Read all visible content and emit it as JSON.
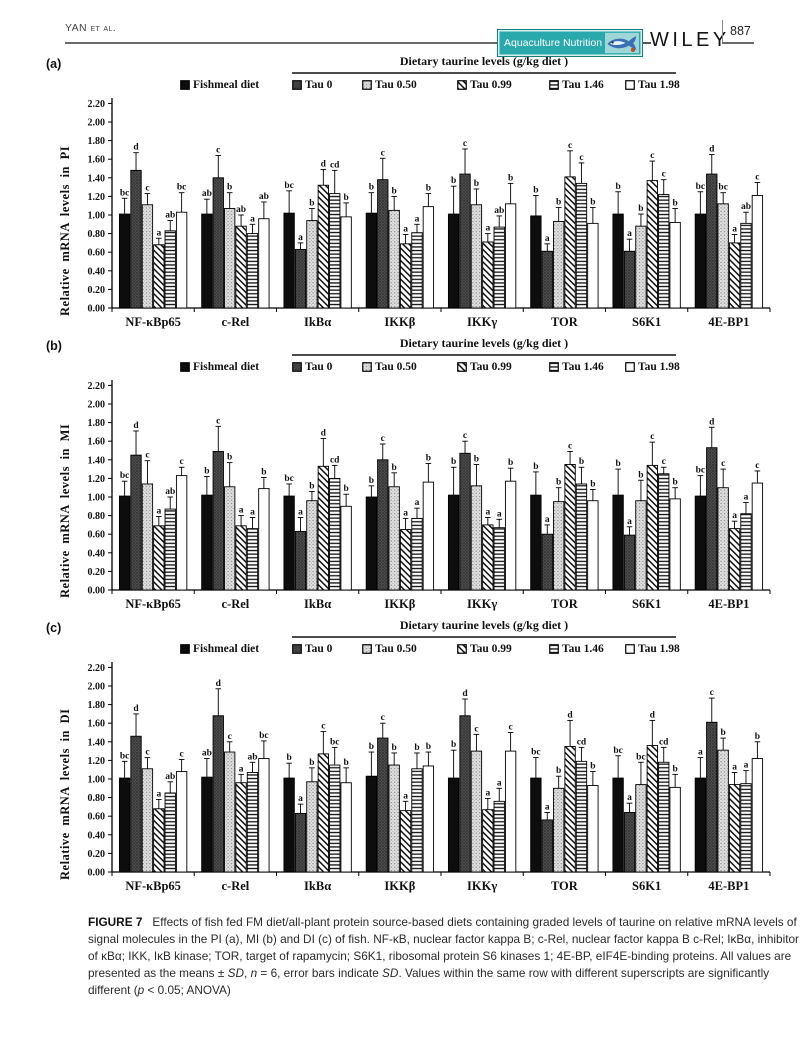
{
  "header": {
    "running_head": "YAN et al.",
    "journal": "Aquaculture Nutrition",
    "publisher": "WILEY",
    "page_number": "887"
  },
  "chart_data": [
    {
      "type": "bar",
      "panel": "(a)",
      "title": "Dietary taurine levels (g/kg diet )",
      "ylabel": "Relative mRNA levels in PI",
      "ylim": [
        0,
        2.2
      ],
      "ytick_step": 0.2,
      "grid": false,
      "legend_position": "top",
      "categories": [
        "NF-κBp65",
        "c-Rel",
        "IkBα",
        "IKKβ",
        "IKKγ",
        "TOR",
        "S6K1",
        "4E-BP1"
      ],
      "series": [
        {
          "name": "Fishmeal diet",
          "pattern": "solid",
          "values": [
            1.01,
            1.01,
            1.02,
            1.02,
            1.01,
            0.99,
            1.01,
            1.01
          ],
          "errors": [
            0.17,
            0.16,
            0.24,
            0.22,
            0.3,
            0.22,
            0.24,
            0.24
          ],
          "letters": [
            "bc",
            "ab",
            "bc",
            "b",
            "b",
            "b",
            "b",
            "bc"
          ]
        },
        {
          "name": "Tau 0",
          "pattern": "dark",
          "values": [
            1.48,
            1.4,
            0.63,
            1.38,
            1.44,
            0.61,
            0.61,
            1.44
          ],
          "errors": [
            0.19,
            0.24,
            0.07,
            0.23,
            0.27,
            0.08,
            0.13,
            0.21
          ],
          "letters": [
            "d",
            "c",
            "a",
            "c",
            "c",
            "a",
            "a",
            "d"
          ]
        },
        {
          "name": "Tau 0.50",
          "pattern": "dots",
          "values": [
            1.11,
            1.07,
            0.94,
            1.05,
            1.11,
            0.93,
            0.88,
            1.12
          ],
          "errors": [
            0.12,
            0.17,
            0.13,
            0.15,
            0.17,
            0.15,
            0.13,
            0.12
          ],
          "letters": [
            "c",
            "b",
            "b",
            "b",
            "b",
            "b",
            "b",
            "bc"
          ]
        },
        {
          "name": "Tau 0.99",
          "pattern": "diag",
          "values": [
            0.68,
            0.88,
            1.32,
            0.69,
            0.71,
            1.41,
            1.37,
            0.7
          ],
          "errors": [
            0.07,
            0.12,
            0.17,
            0.1,
            0.09,
            0.28,
            0.21,
            0.09
          ],
          "letters": [
            "a",
            "ab",
            "d",
            "a",
            "a",
            "c",
            "c",
            "a"
          ]
        },
        {
          "name": "Tau 1.46",
          "pattern": "hlines",
          "values": [
            0.83,
            0.8,
            1.23,
            0.81,
            0.87,
            1.34,
            1.22,
            0.91
          ],
          "errors": [
            0.11,
            0.1,
            0.25,
            0.09,
            0.12,
            0.22,
            0.16,
            0.12
          ],
          "letters": [
            "ab",
            "a",
            "cd",
            "a",
            "ab",
            "c",
            "c",
            "ab"
          ]
        },
        {
          "name": "Tau 1.98",
          "pattern": "white",
          "values": [
            1.03,
            0.96,
            0.98,
            1.09,
            1.12,
            0.91,
            0.92,
            1.21
          ],
          "errors": [
            0.21,
            0.18,
            0.15,
            0.14,
            0.22,
            0.17,
            0.15,
            0.14
          ],
          "letters": [
            "bc",
            "ab",
            "b",
            "b",
            "b",
            "b",
            "b",
            "c"
          ]
        }
      ]
    },
    {
      "type": "bar",
      "panel": "(b)",
      "title": "Dietary taurine levels (g/kg diet )",
      "ylabel": "Relative mRNA levels in MI",
      "ylim": [
        0,
        2.2
      ],
      "ytick_step": 0.2,
      "grid": false,
      "legend_position": "top",
      "categories": [
        "NF-κBp65",
        "c-Rel",
        "IkBα",
        "IKKβ",
        "IKKγ",
        "TOR",
        "S6K1",
        "4E-BP1"
      ],
      "series": [
        {
          "name": "Fishmeal diet",
          "pattern": "solid",
          "values": [
            1.01,
            1.02,
            1.01,
            1.0,
            1.02,
            1.02,
            1.02,
            1.01
          ],
          "errors": [
            0.16,
            0.2,
            0.13,
            0.12,
            0.3,
            0.25,
            0.28,
            0.22
          ],
          "letters": [
            "bc",
            "b",
            "bc",
            "b",
            "b",
            "b",
            "b",
            "bc"
          ]
        },
        {
          "name": "Tau 0",
          "pattern": "dark",
          "values": [
            1.45,
            1.49,
            0.63,
            1.4,
            1.47,
            0.6,
            0.59,
            1.53
          ],
          "errors": [
            0.26,
            0.27,
            0.15,
            0.17,
            0.13,
            0.1,
            0.09,
            0.22
          ],
          "letters": [
            "d",
            "c",
            "a",
            "c",
            "c",
            "a",
            "a",
            "d"
          ]
        },
        {
          "name": "Tau 0.50",
          "pattern": "dots",
          "values": [
            1.14,
            1.11,
            0.96,
            1.11,
            1.12,
            0.95,
            0.96,
            1.1
          ],
          "errors": [
            0.25,
            0.26,
            0.1,
            0.15,
            0.23,
            0.15,
            0.22,
            0.2
          ],
          "letters": [
            "c",
            "b",
            "b",
            "b",
            "b",
            "b",
            "b",
            "c"
          ]
        },
        {
          "name": "Tau 0.99",
          "pattern": "diag",
          "values": [
            0.69,
            0.69,
            1.33,
            0.65,
            0.7,
            1.35,
            1.34,
            0.66
          ],
          "errors": [
            0.1,
            0.11,
            0.3,
            0.12,
            0.08,
            0.14,
            0.25,
            0.08
          ],
          "letters": [
            "a",
            "a",
            "d",
            "a",
            "a",
            "c",
            "c",
            "a"
          ]
        },
        {
          "name": "Tau 1.46",
          "pattern": "hlines",
          "values": [
            0.87,
            0.66,
            1.2,
            0.77,
            0.67,
            1.14,
            1.25,
            0.82
          ],
          "errors": [
            0.13,
            0.12,
            0.14,
            0.11,
            0.09,
            0.18,
            0.07,
            0.12
          ],
          "letters": [
            "ab",
            "a",
            "cd",
            "a",
            "a",
            "b",
            "c",
            "a"
          ]
        },
        {
          "name": "Tau 1.98",
          "pattern": "white",
          "values": [
            1.23,
            1.09,
            0.9,
            1.16,
            1.17,
            0.96,
            0.98,
            1.15
          ],
          "errors": [
            0.09,
            0.12,
            0.13,
            0.2,
            0.14,
            0.12,
            0.12,
            0.13
          ],
          "letters": [
            "c",
            "b",
            "b",
            "b",
            "b",
            "b",
            "b",
            "c"
          ]
        }
      ]
    },
    {
      "type": "bar",
      "panel": "(c)",
      "title": "Dietary taurine levels (g/kg diet )",
      "ylabel": "Relative mRNA levels in DI",
      "ylim": [
        0,
        2.2
      ],
      "ytick_step": 0.2,
      "grid": false,
      "legend_position": "top",
      "categories": [
        "NF-κBp65",
        "c-Rel",
        "IkBα",
        "IKKβ",
        "IKKγ",
        "TOR",
        "S6K1",
        "4E-BP1"
      ],
      "series": [
        {
          "name": "Fishmeal diet",
          "pattern": "solid",
          "values": [
            1.01,
            1.02,
            1.01,
            1.03,
            1.01,
            1.01,
            1.01,
            1.01
          ],
          "errors": [
            0.18,
            0.2,
            0.16,
            0.26,
            0.3,
            0.22,
            0.24,
            0.22
          ],
          "letters": [
            "bc",
            "ab",
            "b",
            "b",
            "b",
            "bc",
            "bc",
            "a"
          ]
        },
        {
          "name": "Tau 0",
          "pattern": "dark",
          "values": [
            1.46,
            1.68,
            0.63,
            1.44,
            1.68,
            0.56,
            0.64,
            1.61
          ],
          "errors": [
            0.24,
            0.29,
            0.1,
            0.16,
            0.18,
            0.08,
            0.1,
            0.26
          ],
          "letters": [
            "d",
            "d",
            "a",
            "c",
            "d",
            "a",
            "a",
            "c"
          ]
        },
        {
          "name": "Tau 0.50",
          "pattern": "dots",
          "values": [
            1.11,
            1.29,
            0.97,
            1.15,
            1.3,
            0.9,
            0.94,
            1.31
          ],
          "errors": [
            0.12,
            0.11,
            0.15,
            0.13,
            0.18,
            0.13,
            0.24,
            0.13
          ],
          "letters": [
            "c",
            "c",
            "b",
            "b",
            "c",
            "b",
            "bc",
            "b"
          ]
        },
        {
          "name": "Tau 0.99",
          "pattern": "diag",
          "values": [
            0.68,
            0.96,
            1.27,
            0.66,
            0.67,
            1.35,
            1.36,
            0.94
          ],
          "errors": [
            0.1,
            0.09,
            0.24,
            0.1,
            0.12,
            0.28,
            0.27,
            0.13
          ],
          "letters": [
            "a",
            "a",
            "c",
            "a",
            "a",
            "d",
            "d",
            "a"
          ]
        },
        {
          "name": "Tau 1.46",
          "pattern": "hlines",
          "values": [
            0.85,
            1.07,
            1.15,
            1.11,
            0.76,
            1.19,
            1.18,
            0.95
          ],
          "errors": [
            0.12,
            0.11,
            0.19,
            0.17,
            0.14,
            0.15,
            0.16,
            0.14
          ],
          "letters": [
            "ab",
            "ab",
            "bc",
            "b",
            "a",
            "cd",
            "cd",
            "a"
          ]
        },
        {
          "name": "Tau 1.98",
          "pattern": "white",
          "values": [
            1.08,
            1.22,
            0.96,
            1.14,
            1.3,
            0.93,
            0.91,
            1.22
          ],
          "errors": [
            0.13,
            0.19,
            0.16,
            0.15,
            0.2,
            0.15,
            0.14,
            0.18
          ],
          "letters": [
            "c",
            "bc",
            "b",
            "b",
            "c",
            "b",
            "b",
            "b"
          ]
        }
      ]
    }
  ],
  "caption": {
    "label": "FIGURE 7",
    "segments": [
      {
        "t": "Effects of fish fed FM diet/all-plant protein source-based diets containing graded levels of taurine on relative mRNA levels of signal molecules in the PI (a), MI (b) and DI (c) of fish. NF-κB, nuclear factor kappa B; c-Rel, nuclear factor kappa B c-Rel; IκBα, inhibitor of κBα; IKK, IκB kinase; TOR, target of rapamycin; S6K1, ribosomal protein S6 kinases 1; 4E-BP, eIF4E-binding proteins. All values are presented as the means ± ",
        "i": false
      },
      {
        "t": "SD",
        "i": true
      },
      {
        "t": ", ",
        "i": false
      },
      {
        "t": "n",
        "i": true
      },
      {
        "t": " = 6, error bars indicate ",
        "i": false
      },
      {
        "t": "SD",
        "i": true
      },
      {
        "t": ". Values within the same row with different superscripts are significantly different (",
        "i": false
      },
      {
        "t": "p",
        "i": true
      },
      {
        "t": " < 0.05; ANOVA)",
        "i": false
      }
    ]
  },
  "colors": {
    "badge_teal": "#2aa9ac",
    "bar_black": "#0d0d0d",
    "bar_dark_gray": "#4c4c4c",
    "bar_light_gray": "#e2e2e2",
    "rule_gray": "#6a6a6a"
  }
}
